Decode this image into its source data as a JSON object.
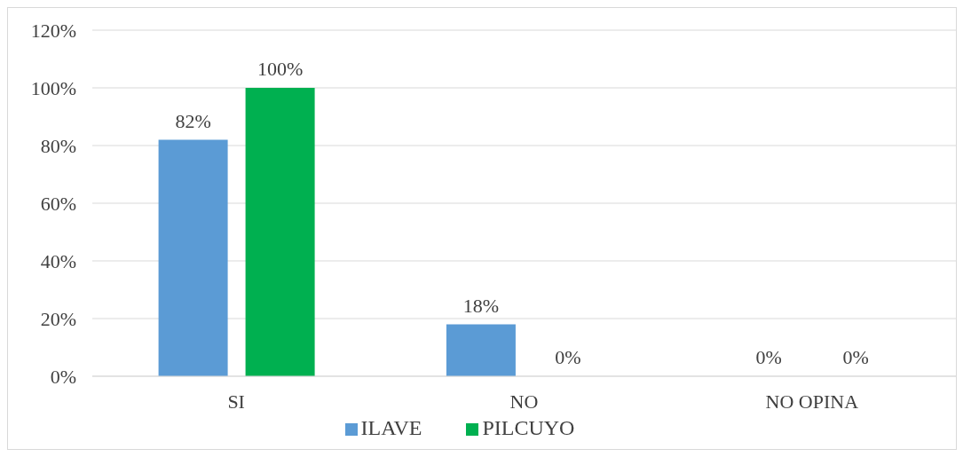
{
  "chart_data": {
    "type": "bar",
    "categories": [
      "SI",
      "NO",
      "NO OPINA"
    ],
    "series": [
      {
        "name": "ILAVE",
        "color": "#5b9bd5",
        "values": [
          82,
          18,
          0
        ],
        "value_labels": [
          "82%",
          "18%",
          "0%"
        ]
      },
      {
        "name": "PILCUYO",
        "color": "#00b050",
        "values": [
          100,
          0,
          0
        ],
        "value_labels": [
          "100%",
          "0%",
          "0%"
        ]
      }
    ],
    "ylim": [
      0,
      120
    ],
    "yticks": [
      {
        "value": 0,
        "label": "0%"
      },
      {
        "value": 20,
        "label": "20%"
      },
      {
        "value": 40,
        "label": "40%"
      },
      {
        "value": 60,
        "label": "60%"
      },
      {
        "value": 80,
        "label": "80%"
      },
      {
        "value": 100,
        "label": "100%"
      },
      {
        "value": 120,
        "label": "120%"
      }
    ],
    "grid": "y",
    "legend": "bottom"
  }
}
